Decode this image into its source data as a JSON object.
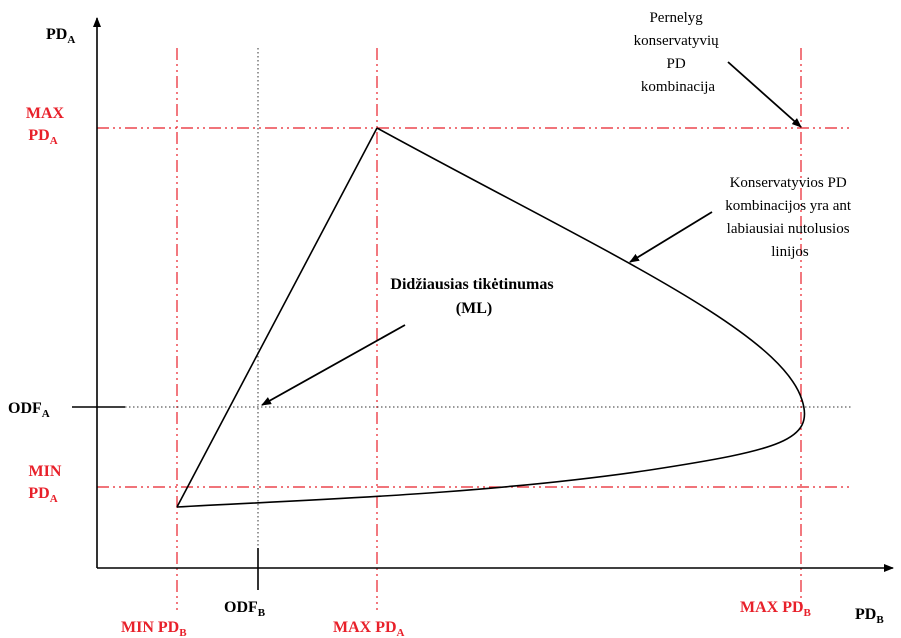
{
  "axes": {
    "y": {
      "main": "PD",
      "sub": "A"
    },
    "x": {
      "main": "PD",
      "sub": "B"
    }
  },
  "levels": {
    "max_pd_a": {
      "line1": "MAX",
      "line2_main": "PD",
      "line2_sub": "A"
    },
    "min_pd_a": {
      "line1": "MIN",
      "line2_main": "PD",
      "line2_sub": "A"
    },
    "odf_a": {
      "main": "ODF",
      "sub": "A"
    }
  },
  "x_marks": {
    "min_pd_b": {
      "main": "MIN PD",
      "sub": "B"
    },
    "odf_b": {
      "main": "ODF",
      "sub": "B"
    },
    "max_pd_a": {
      "main": "MAX PD",
      "sub": "A"
    },
    "max_pd_b": {
      "main": "MAX PD",
      "sub": "B"
    }
  },
  "annotations": {
    "ml": [
      "Didžiausias tikėtinumas",
      "(ML)"
    ],
    "conservative": [
      "Konservatyvios PD",
      "kombinacijos yra ant",
      "labiausiai nutolusios",
      "linijos"
    ],
    "overly_conservative": [
      "Pernelyg",
      "konservatyvių",
      "PD",
      "kombinacija"
    ]
  },
  "colors": {
    "accent": "#e8202a",
    "ink": "#000000",
    "guide": "#333333"
  }
}
